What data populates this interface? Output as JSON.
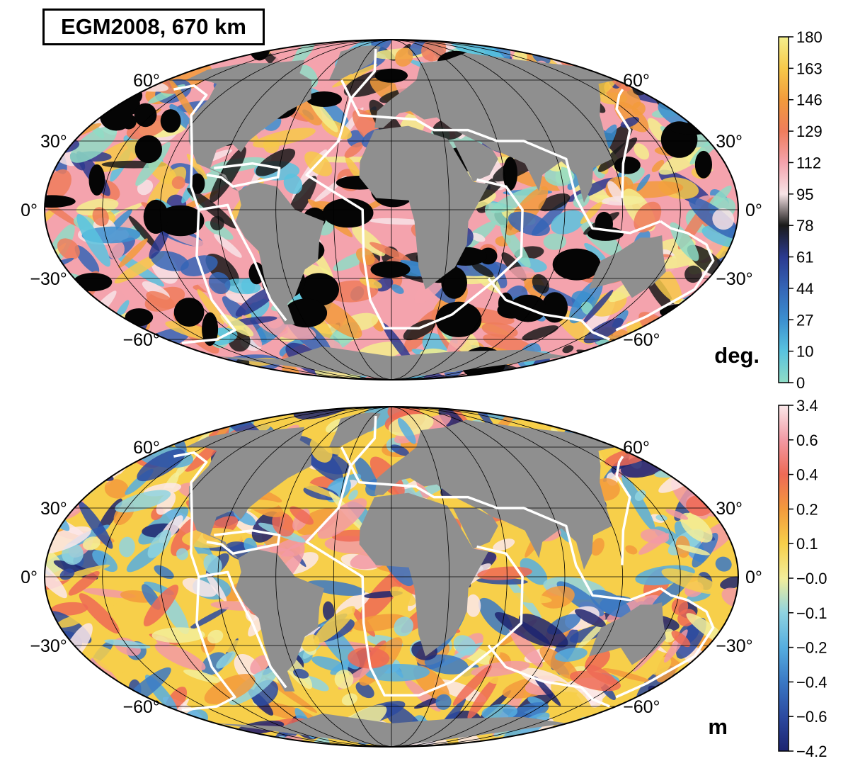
{
  "title": "EGM2008, 670 km",
  "maps": [
    {
      "name": "angle-map",
      "lat_labels": [
        "60°",
        "30°",
        "0°",
        "−30°",
        "−60°"
      ],
      "colorbar": {
        "unit": "deg.",
        "ticks": [
          "180",
          "163",
          "146",
          "129",
          "112",
          "95",
          "78",
          "61",
          "44",
          "27",
          "10",
          "0"
        ],
        "colors": [
          "#f3ef8d",
          "#f7c94a",
          "#f29b3c",
          "#ef7d5c",
          "#f4a3ad",
          "#f7e3e6",
          "#1a1a1a",
          "#2b3a8f",
          "#3565b6",
          "#3b8fd0",
          "#59c3df",
          "#8fdcc6"
        ]
      }
    },
    {
      "name": "magnitude-map",
      "lat_labels": [
        "60°",
        "30°",
        "0°",
        "−30°",
        "−60°"
      ],
      "colorbar": {
        "unit": "m",
        "ticks": [
          "3.4",
          "0.6",
          "0.4",
          "0.2",
          "0.1",
          "−0.0",
          "−0.1",
          "−0.2",
          "−0.4",
          "−0.6",
          "−4.2"
        ],
        "colors": [
          "#fbe8ea",
          "#f29aa4",
          "#ee6a55",
          "#f39a3c",
          "#f7cf4a",
          "#f3ee9a",
          "#8fd3e0",
          "#56aee0",
          "#3a78c4",
          "#2c4aa0",
          "#1d2470"
        ]
      }
    }
  ],
  "colors": {
    "land": "#8f8f8f",
    "plate_boundary": "#ffffff",
    "grid": "#000000"
  }
}
